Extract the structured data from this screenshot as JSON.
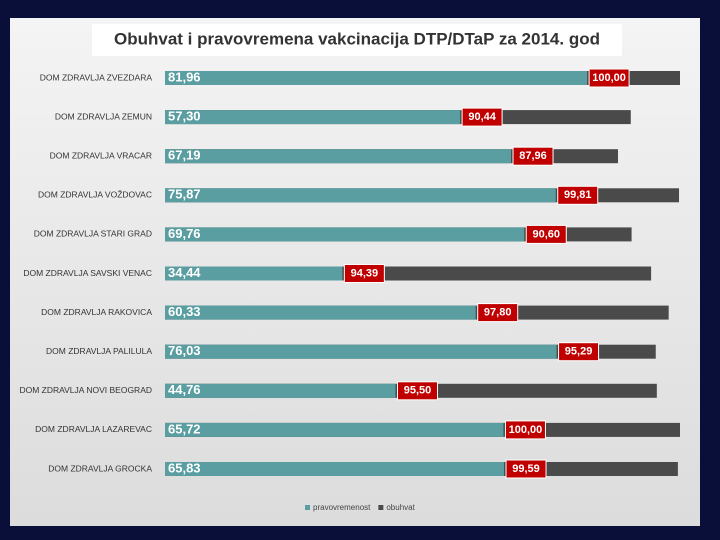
{
  "chart_data": {
    "type": "bar",
    "orientation": "horizontal",
    "title": "Obuhvat i pravovremena vakcinacija DTP/DTaP za 2014. god",
    "categories": [
      "DOM ZDRAVLJA ZVEZDARA",
      "DOM ZDRAVLJA ZEMUN",
      "DOM ZDRAVLJA VRACAR",
      "DOM ZDRAVLJA VOŽDOVAC",
      "DOM ZDRAVLJA STARI GRAD",
      "DOM ZDRAVLJA SAVSKI VENAC",
      "DOM ZDRAVLJA RAKOVICA",
      "DOM ZDRAVLJA PALILULA",
      "DOM ZDRAVLJA NOVI BEOGRAD",
      "DOM ZDRAVLJA LAZAREVAC",
      "DOM ZDRAVLJA GROCKA"
    ],
    "series": [
      {
        "name": "pravovremenost",
        "color": "#5a9ea1",
        "values": [
          81.96,
          57.3,
          67.19,
          75.87,
          69.76,
          34.44,
          60.33,
          76.03,
          44.76,
          65.72,
          65.83
        ],
        "value_labels": [
          "81,96",
          "57,30",
          "67,19",
          "75,87",
          "69,76",
          "34,44",
          "60,33",
          "76,03",
          "44,76",
          "65,72",
          "65,83"
        ]
      },
      {
        "name": "obuhvat",
        "color": "#4a4a4a",
        "values": [
          100.0,
          90.44,
          87.96,
          99.81,
          90.6,
          94.39,
          97.8,
          95.29,
          95.5,
          100.0,
          99.59
        ],
        "value_labels": [
          "100,00",
          "90,44",
          "87,96",
          "99,81",
          "90,60",
          "94,39",
          "97,80",
          "95,29",
          "95,50",
          "100,00",
          "99,59"
        ]
      }
    ],
    "xlim": [
      0,
      100
    ],
    "legend": "bottom"
  }
}
